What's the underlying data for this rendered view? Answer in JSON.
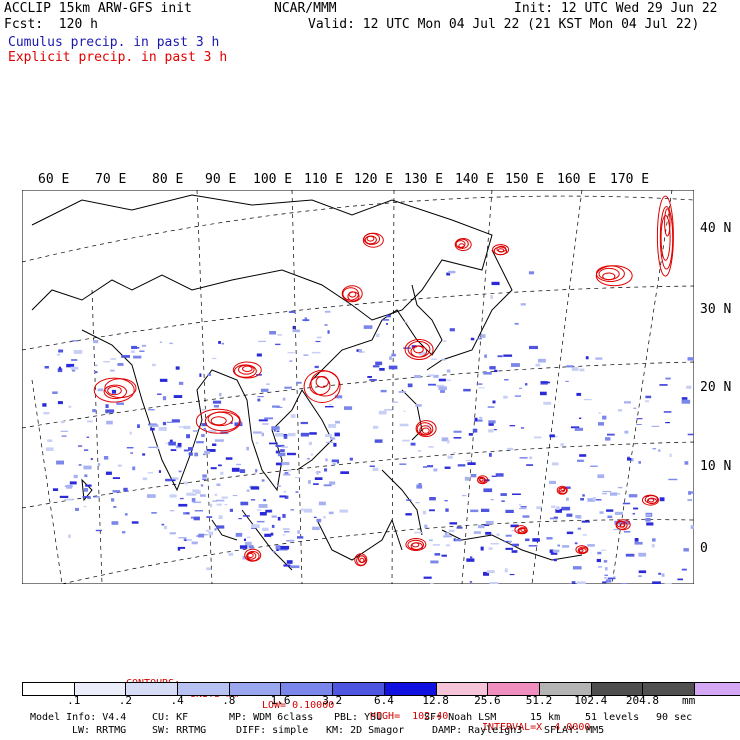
{
  "header": {
    "model_line": "ACCLIP 15km ARW-GFS init",
    "org": "NCAR/MMM",
    "init": "Init: 12 UTC Wed 29 Jun 22",
    "fcst": "Fcst:  120 h",
    "valid": "Valid: 12 UTC Mon 04 Jul 22 (21 KST Mon 04 Jul 22)",
    "cumulus": "Cumulus precip. in past 3 h",
    "explicit": "Explicit precip. in past 3 h"
  },
  "map": {
    "lon_labels": [
      "60 E",
      "70 E",
      "80 E",
      "90 E",
      "100 E",
      "110 E",
      "120 E",
      "130 E",
      "140 E",
      "150 E",
      "160 E",
      "170 E"
    ],
    "lat_labels": [
      "40 N",
      "30 N",
      "20 N",
      "10 N",
      "0"
    ],
    "colors": {
      "cumulus": "#1a1ad0",
      "explicit": "#e00000",
      "coast": "#000000",
      "grid": "#000000"
    }
  },
  "contours": {
    "label": "CONTOURS:",
    "units": "UNITS=mm",
    "low": "LOW= 0.10000",
    "high": "HIGH=  102.40",
    "interval": "INTERVAL=X  4.0000"
  },
  "colorbar": {
    "ticks": [
      ".1",
      ".2",
      ".4",
      ".8",
      "1.6",
      "3.2",
      "6.4",
      "12.8",
      "25.6",
      "51.2",
      "102.4",
      "204.8"
    ],
    "unit": "mm",
    "colors": [
      "#ffffff",
      "#ebeefa",
      "#d6dcf6",
      "#b8c2f2",
      "#9aa6ee",
      "#7a86ea",
      "#4e55e0",
      "#1010e0",
      "#f6c4d8",
      "#f08ec0",
      "#b4b4b4",
      "#4e4e4e",
      "#505050",
      "#d4a8f4"
    ]
  },
  "footer": {
    "line1": [
      "Model Info: V4.4",
      "CU: KF",
      "MP: WDM 6class",
      "PBL: YSU",
      "SF: Noah LSM",
      "15 km",
      "51 levels",
      "90 sec"
    ],
    "line2": [
      "LW: RRTMG",
      "SW: RRTMG",
      "DIFF: simple",
      "KM: 2D Smagor",
      "DAMP: Rayleigh3",
      "SFLAY: MM5"
    ]
  }
}
